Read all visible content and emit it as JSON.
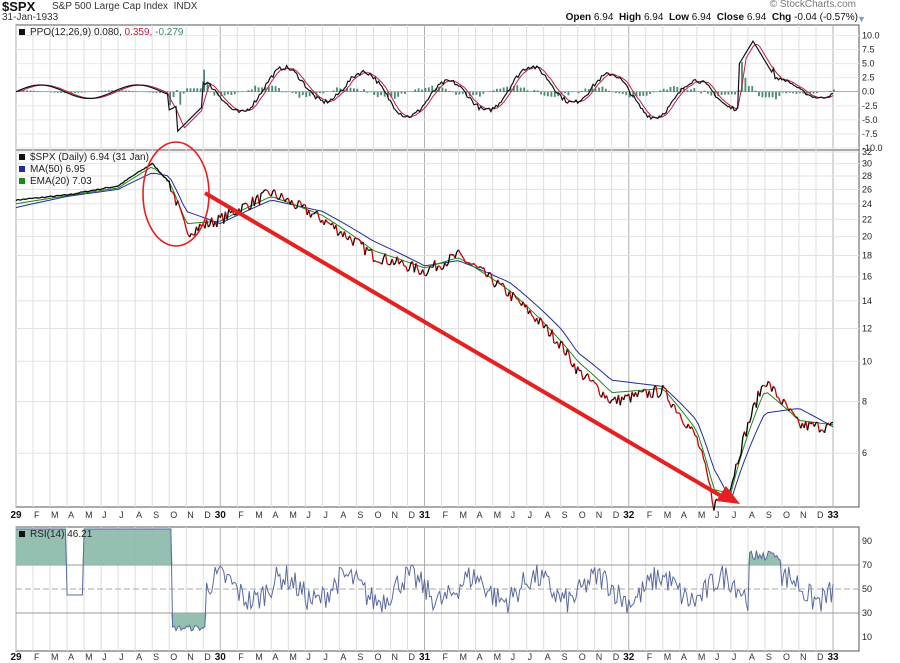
{
  "header": {
    "symbol": "$SPX",
    "name": "S&P 500 Large Cap Index",
    "exchange": "INDX",
    "date": "31-Jan-1933",
    "watermark": "© StockCharts.com",
    "open_label": "Open",
    "open": "6.94",
    "high_label": "High",
    "high": "6.94",
    "low_label": "Low",
    "low": "6.94",
    "close_label": "Close",
    "close": "6.94",
    "chg_label": "Chg",
    "chg": "-0.04 (-0.57%)"
  },
  "ppo_panel": {
    "legend_name": "PPO(12,26,9)",
    "legend_v1": "0.080,",
    "legend_v2": "0.359,",
    "legend_v3": "-0.279",
    "ticks": [
      "10.0",
      "7.5",
      "5.0",
      "2.5",
      "0.0",
      "-2.5",
      "-5.0",
      "-7.5",
      "-10.0"
    ]
  },
  "price_panel": {
    "legend_price": "$SPX (Daily) 6.94 (31 Jan)",
    "legend_ma": "MA(50) 6.95",
    "legend_ema": "EMA(20) 7.03",
    "ticks": [
      "32",
      "30",
      "28",
      "26",
      "24",
      "22",
      "20",
      "18",
      "16",
      "14",
      "12",
      "10",
      "8",
      "6"
    ]
  },
  "rsi_panel": {
    "legend": "RSI(14) 46.21",
    "ticks": [
      "90",
      "70",
      "50",
      "30",
      "10"
    ]
  },
  "x_axis": {
    "labels": [
      "29",
      "F",
      "M",
      "A",
      "M",
      "J",
      "J",
      "A",
      "S",
      "O",
      "N",
      "D",
      "30",
      "F",
      "M",
      "A",
      "M",
      "J",
      "J",
      "A",
      "S",
      "O",
      "N",
      "D",
      "31",
      "F",
      "M",
      "A",
      "M",
      "J",
      "J",
      "A",
      "S",
      "O",
      "N",
      "D",
      "32",
      "F",
      "M",
      "A",
      "M",
      "J",
      "J",
      "A",
      "S",
      "O",
      "N",
      "D",
      "33"
    ]
  },
  "colors": {
    "price": "#000000",
    "down": "#cc0000",
    "ma50": "#1f2d9c",
    "ema20": "#1a8a1a",
    "ppo_hist": "#4a8a72",
    "rsi_line": "#5a6aa0",
    "rsi_fill": "#8ab8a8",
    "annotation": "#e52020"
  },
  "chart_data": {
    "type": "line",
    "title": "$SPX",
    "x": [
      "1929-01",
      "1929-04",
      "1929-07",
      "1929-09",
      "1929-10",
      "1929-11",
      "1930-01",
      "1930-04",
      "1930-07",
      "1930-10",
      "1931-01",
      "1931-03",
      "1931-06",
      "1931-09",
      "1931-10",
      "1931-12",
      "1932-03",
      "1932-05",
      "1932-06",
      "1932-07",
      "1932-09",
      "1932-11",
      "1933-01"
    ],
    "series": [
      {
        "name": "$SPX (Daily)",
        "values": [
          24.5,
          25.2,
          26.5,
          30.0,
          27.0,
          20.5,
          22.0,
          25.5,
          22.0,
          18.0,
          16.5,
          18.0,
          14.5,
          11.0,
          9.5,
          8.0,
          8.5,
          6.5,
          4.5,
          5.0,
          9.0,
          7.0,
          6.94
        ]
      },
      {
        "name": "MA(50)",
        "values": [
          23.5,
          25.0,
          26.0,
          28.5,
          28.0,
          23.0,
          21.5,
          24.5,
          23.0,
          19.5,
          17.0,
          17.5,
          15.5,
          12.0,
          10.5,
          9.0,
          8.7,
          7.2,
          5.5,
          4.6,
          7.5,
          7.7,
          6.95
        ]
      },
      {
        "name": "EMA(20)",
        "values": [
          24.0,
          25.1,
          26.2,
          29.5,
          27.2,
          21.5,
          21.8,
          25.0,
          22.5,
          18.5,
          16.8,
          17.8,
          14.8,
          11.2,
          10.0,
          8.4,
          8.6,
          6.8,
          4.9,
          4.8,
          8.5,
          7.2,
          7.03
        ]
      }
    ],
    "ylim": [
      4.5,
      32
    ],
    "yscale": "log",
    "ppo": {
      "legend": "PPO(12,26,9)",
      "values": [
        0.08,
        0.359,
        -0.279
      ],
      "ylim": [
        -10,
        11.5
      ]
    },
    "rsi": {
      "legend": "RSI(14)",
      "last": 46.21,
      "ylim": [
        0,
        100
      ],
      "levels": [
        30,
        70
      ]
    }
  }
}
